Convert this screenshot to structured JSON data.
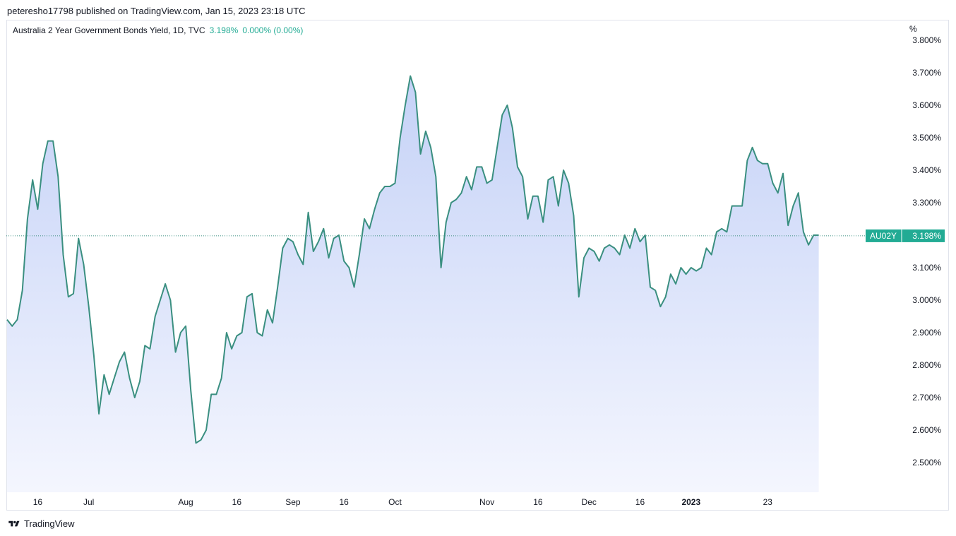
{
  "header": {
    "published_text": "peteresho17798 published on TradingView.com, Jan 15, 2023 23:18 UTC"
  },
  "legend": {
    "symbol_text": "Australia 2 Year Government Bonds Yield, 1D, TVC",
    "last_value": "3.198%",
    "change_text": "0.000% (0.00%)"
  },
  "axis": {
    "unit_label": "%"
  },
  "price_tag": {
    "ticker": "AU02Y",
    "value": "3.198%"
  },
  "footer": {
    "brand": "TradingView"
  },
  "colors": {
    "line": "#3a8f80",
    "fill_top": "#c5d2f7",
    "fill_bottom": "#f4f6fe",
    "tag_bg": "#22ab94",
    "grid_text": "#131722"
  },
  "chart_data": {
    "type": "area",
    "ylim": [
      2.42,
      3.85
    ],
    "y_ticks": [
      "3.800%",
      "3.700%",
      "3.600%",
      "3.500%",
      "3.400%",
      "3.300%",
      "3.200%",
      "3.100%",
      "3.000%",
      "2.900%",
      "2.800%",
      "2.700%",
      "2.600%",
      "2.500%"
    ],
    "y_tick_values": [
      3.8,
      3.7,
      3.6,
      3.5,
      3.4,
      3.3,
      3.2,
      3.1,
      3.0,
      2.9,
      2.8,
      2.7,
      2.6,
      2.5
    ],
    "x_ticks": [
      "16",
      "Jul",
      "Aug",
      "16",
      "Sep",
      "16",
      "Oct",
      "Nov",
      "16",
      "Dec",
      "16",
      "2023",
      "23"
    ],
    "x_tick_index": [
      6,
      16,
      35,
      45,
      56,
      66,
      76,
      94,
      104,
      114,
      124,
      134,
      149
    ],
    "last_value": 3.198,
    "values": [
      2.94,
      2.92,
      2.94,
      3.03,
      3.25,
      3.37,
      3.28,
      3.42,
      3.49,
      3.49,
      3.38,
      3.14,
      3.01,
      3.02,
      3.19,
      3.11,
      2.98,
      2.83,
      2.65,
      2.77,
      2.71,
      2.76,
      2.81,
      2.84,
      2.76,
      2.7,
      2.75,
      2.86,
      2.85,
      2.95,
      3.0,
      3.05,
      3.0,
      2.84,
      2.9,
      2.92,
      2.72,
      2.56,
      2.57,
      2.6,
      2.71,
      2.71,
      2.76,
      2.9,
      2.85,
      2.89,
      2.9,
      3.01,
      3.02,
      2.9,
      2.89,
      2.97,
      2.93,
      3.04,
      3.16,
      3.19,
      3.18,
      3.14,
      3.11,
      3.27,
      3.15,
      3.18,
      3.22,
      3.13,
      3.19,
      3.2,
      3.12,
      3.1,
      3.04,
      3.14,
      3.25,
      3.22,
      3.28,
      3.33,
      3.35,
      3.35,
      3.36,
      3.5,
      3.6,
      3.69,
      3.64,
      3.45,
      3.52,
      3.47,
      3.38,
      3.1,
      3.24,
      3.3,
      3.31,
      3.33,
      3.38,
      3.34,
      3.41,
      3.41,
      3.36,
      3.37,
      3.47,
      3.57,
      3.6,
      3.53,
      3.41,
      3.38,
      3.25,
      3.32,
      3.32,
      3.24,
      3.37,
      3.38,
      3.29,
      3.4,
      3.36,
      3.26,
      3.01,
      3.13,
      3.16,
      3.15,
      3.12,
      3.16,
      3.17,
      3.16,
      3.14,
      3.2,
      3.16,
      3.22,
      3.18,
      3.2,
      3.04,
      3.03,
      2.98,
      3.01,
      3.08,
      3.05,
      3.1,
      3.08,
      3.1,
      3.09,
      3.1,
      3.16,
      3.14,
      3.21,
      3.22,
      3.21,
      3.29,
      3.29,
      3.29,
      3.43,
      3.47,
      3.43,
      3.42,
      3.42,
      3.36,
      3.33,
      3.39,
      3.23,
      3.29,
      3.33,
      3.21,
      3.17,
      3.2,
      3.2
    ]
  }
}
